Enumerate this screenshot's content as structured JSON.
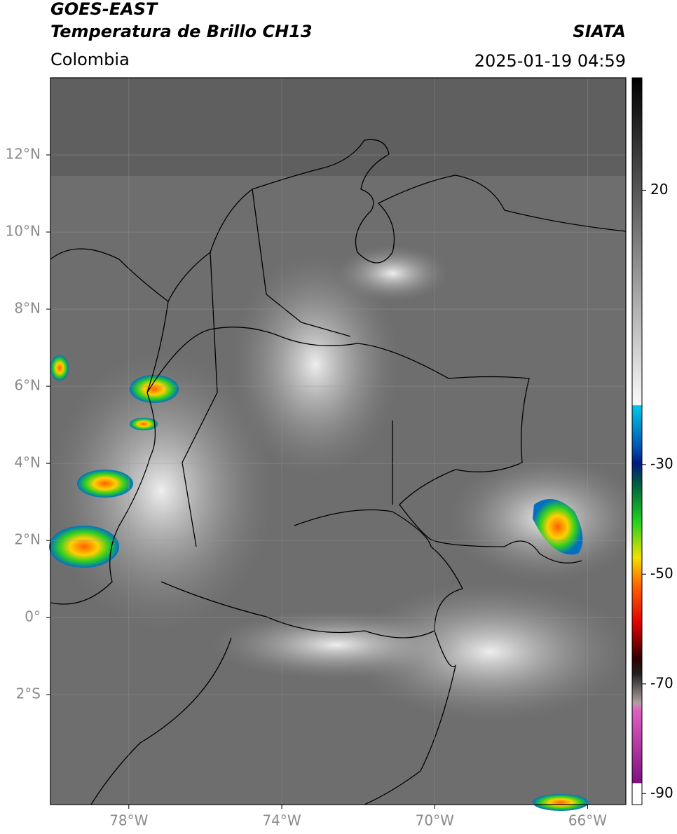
{
  "header": {
    "title": "GOES-EAST",
    "subtitle": "Temperatura de Brillo CH13",
    "source": "SIATA",
    "region": "Colombia",
    "datetime": "2025-01-19 04:59"
  },
  "map": {
    "lon_range": [
      -80.05,
      -65
    ],
    "lat_range": [
      -4.85,
      14.0
    ],
    "lat_ticks": [
      {
        "value": 12,
        "label": "12°N"
      },
      {
        "value": 10,
        "label": "10°N"
      },
      {
        "value": 8,
        "label": "8°N"
      },
      {
        "value": 6,
        "label": "6°N"
      },
      {
        "value": 4,
        "label": "4°N"
      },
      {
        "value": 2,
        "label": "2°N"
      },
      {
        "value": 0,
        "label": "0°"
      },
      {
        "value": -2,
        "label": "2°S"
      }
    ],
    "lon_ticks": [
      {
        "value": -78,
        "label": "78°W"
      },
      {
        "value": -74,
        "label": "74°W"
      },
      {
        "value": -70,
        "label": "70°W"
      },
      {
        "value": -66,
        "label": "66°W"
      }
    ]
  },
  "colorbar": {
    "range": [
      -92,
      40.5
    ],
    "ticks": [
      20,
      -30,
      -50,
      -70,
      -90
    ]
  }
}
